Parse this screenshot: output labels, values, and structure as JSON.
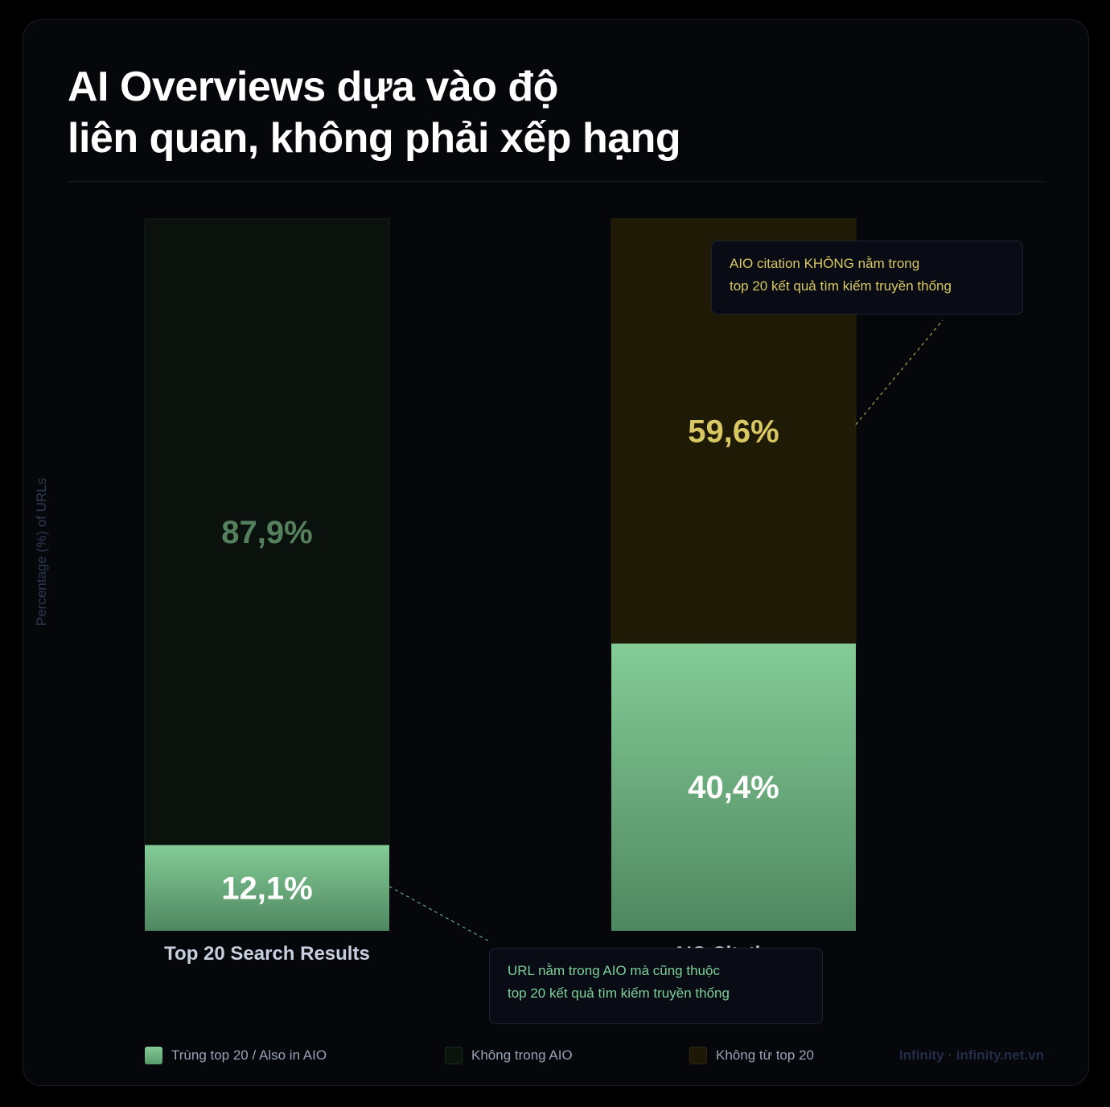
{
  "title_lines": [
    "AI Overviews dựa vào độ",
    "liên quan, không phải xếp hạng"
  ],
  "colors": {
    "also_in_aio_top": "#84cc97",
    "also_in_aio_bottom": "#4f8760",
    "not_in_aio": "#0b120d",
    "not_from_top20": "#1f1a06",
    "label_yellow": "#d8c863",
    "label_dark_green": "#55805e"
  },
  "chart_data": {
    "type": "bar",
    "stacked": true,
    "categories": [
      "Top 20 Search Results",
      "AIO Citations"
    ],
    "ylabel": "Percentage (%) of URLs",
    "ylim": [
      0,
      100
    ],
    "grid": false,
    "legend_position": "bottom",
    "series": [
      {
        "name": "Trùng top 20 / Also in AIO",
        "values": [
          12.1,
          40.4
        ],
        "labels": [
          "12,1%",
          "40,4%"
        ]
      },
      {
        "name": "Không trong AIO",
        "values": [
          87.9,
          null
        ],
        "labels": [
          "87,9%",
          ""
        ]
      },
      {
        "name": "Không từ top 20",
        "values": [
          null,
          59.6
        ],
        "labels": [
          "",
          "59,6%"
        ]
      }
    ],
    "annotations": [
      {
        "target": "AIO Citations / Không từ top 20",
        "lines": [
          "AIO citation KHÔNG nằm trong",
          "top 20 kết quả tìm kiếm truyền thống"
        ]
      },
      {
        "target": "Top 20 Search Results / Trùng top 20",
        "lines": [
          "URL nằm trong AIO mà cũng thuộc",
          "top 20 kết quả tìm kiếm truyền thống"
        ]
      }
    ]
  },
  "legend": [
    {
      "label": "Trùng top 20 / Also in AIO",
      "swatch": "green"
    },
    {
      "label": "Không trong AIO",
      "swatch": "dark"
    },
    {
      "label": "Không từ top 20",
      "swatch": "yellow"
    }
  ],
  "brand": "Infinity · infinity.net.vn"
}
